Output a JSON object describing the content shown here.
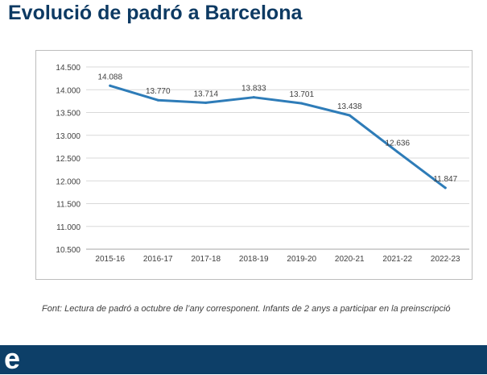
{
  "page": {
    "title": "Evolució de padró a Barcelona",
    "source_note": "Font: Lectura de padró a octubre de l’any corresponent. Infants de 2 anys a participar en la preinscripció",
    "logo_letter": "e"
  },
  "colors": {
    "title": "#0d3a63",
    "line": "#2e7cb8",
    "grid": "#d9d9d9",
    "axis_text": "#404040",
    "footer": "#0d3f68"
  },
  "chart_data": {
    "type": "line",
    "title": "",
    "xlabel": "",
    "ylabel": "",
    "categories": [
      "2015-16",
      "2016-17",
      "2017-18",
      "2018-19",
      "2019-20",
      "2020-21",
      "2021-22",
      "2022-23"
    ],
    "series": [
      {
        "values": [
          14088,
          13770,
          13714,
          13833,
          13701,
          13438,
          12636,
          11847
        ],
        "labels": [
          "14.088",
          "13.770",
          "13.714",
          "13.833",
          "13.701",
          "13.438",
          "12.636",
          "11.847"
        ]
      }
    ],
    "yticks": [
      10500,
      11000,
      11500,
      12000,
      12500,
      13000,
      13500,
      14000,
      14500
    ],
    "ytick_labels": [
      "10.500",
      "11.000",
      "11.500",
      "12.000",
      "12.500",
      "13.000",
      "13.500",
      "14.000",
      "14.500"
    ],
    "ylim": [
      10500,
      14500
    ],
    "grid": true,
    "legend": "none"
  }
}
